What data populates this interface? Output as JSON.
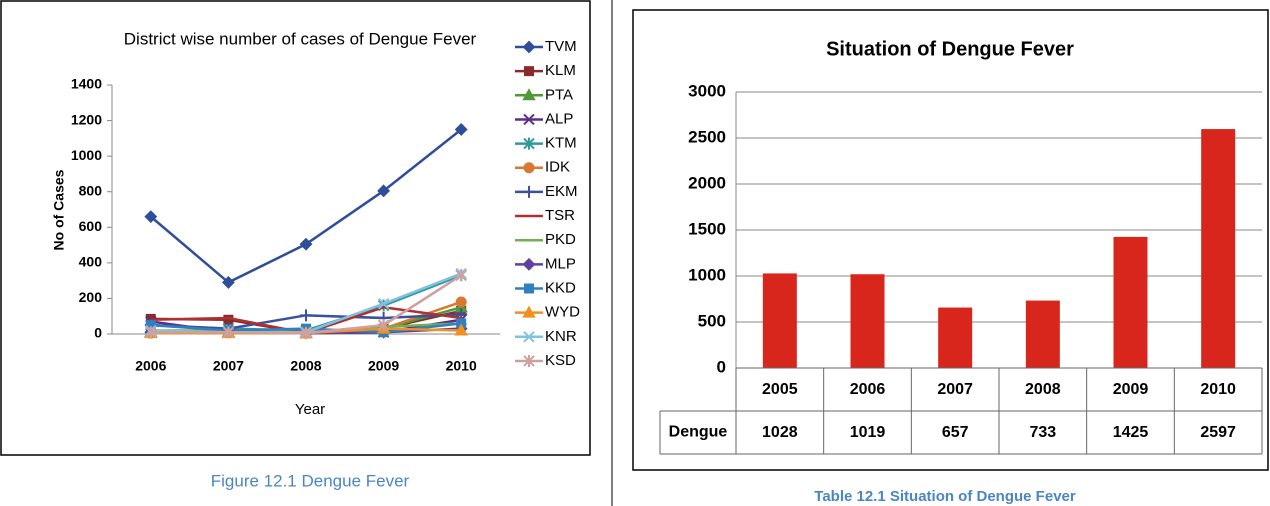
{
  "chart_data": [
    {
      "type": "line",
      "title": "District wise number of cases of Dengue Fever",
      "x_label": "Year",
      "y_label": "No of Cases",
      "categories": [
        "2006",
        "2007",
        "2008",
        "2009",
        "2010"
      ],
      "ylim": [
        0,
        1400
      ],
      "yticks": [
        0,
        200,
        400,
        600,
        800,
        1000,
        1200,
        1400
      ],
      "series": [
        {
          "name": "TVM",
          "color": "#2e4e9a",
          "marker": "diamond",
          "values": [
            660,
            290,
            505,
            805,
            1150
          ]
        },
        {
          "name": "KLM",
          "color": "#8b2a2a",
          "marker": "square",
          "values": [
            85,
            80,
            5,
            30,
            130
          ]
        },
        {
          "name": "PTA",
          "color": "#4e9a3a",
          "marker": "triangle",
          "values": [
            10,
            10,
            5,
            30,
            150
          ]
        },
        {
          "name": "ALP",
          "color": "#5a2e8a",
          "marker": "x",
          "values": [
            70,
            10,
            5,
            10,
            80
          ]
        },
        {
          "name": "KTM",
          "color": "#2e9a9a",
          "marker": "star",
          "values": [
            50,
            30,
            20,
            160,
            330
          ]
        },
        {
          "name": "IDK",
          "color": "#d9782e",
          "marker": "circle",
          "values": [
            5,
            10,
            5,
            30,
            180
          ]
        },
        {
          "name": "EKM",
          "color": "#3a50a0",
          "marker": "plus",
          "values": [
            50,
            30,
            105,
            90,
            110
          ]
        },
        {
          "name": "TSR",
          "color": "#b03030",
          "marker": "none",
          "values": [
            80,
            90,
            5,
            150,
            90
          ]
        },
        {
          "name": "PKD",
          "color": "#70b050",
          "marker": "none",
          "values": [
            20,
            20,
            10,
            40,
            60
          ]
        },
        {
          "name": "MLP",
          "color": "#6040a0",
          "marker": "diamond",
          "values": [
            10,
            10,
            5,
            10,
            30
          ]
        },
        {
          "name": "KKD",
          "color": "#3080c0",
          "marker": "square",
          "values": [
            50,
            20,
            30,
            10,
            60
          ]
        },
        {
          "name": "WYD",
          "color": "#f09020",
          "marker": "triangle",
          "values": [
            5,
            5,
            5,
            30,
            20
          ]
        },
        {
          "name": "KNR",
          "color": "#80c0e0",
          "marker": "x",
          "values": [
            20,
            10,
            10,
            170,
            340
          ]
        },
        {
          "name": "KSD",
          "color": "#d0a0a0",
          "marker": "star",
          "values": [
            10,
            10,
            5,
            50,
            330
          ]
        }
      ]
    },
    {
      "type": "bar",
      "title": "Situation of Dengue Fever",
      "data_table": true,
      "categories": [
        "2005",
        "2006",
        "2007",
        "2008",
        "2009",
        "2010"
      ],
      "ylim": [
        0,
        3000
      ],
      "yticks": [
        0,
        500,
        1000,
        1500,
        2000,
        2500,
        3000
      ],
      "grid": true,
      "series": [
        {
          "name": "Dengue",
          "color": "#d9261c",
          "values": [
            1028,
            1019,
            657,
            733,
            1425,
            2597
          ]
        }
      ]
    }
  ],
  "captions": [
    "Figure 12.1 Dengue Fever",
    "Table 12.1  Situation of Dengue Fever"
  ]
}
